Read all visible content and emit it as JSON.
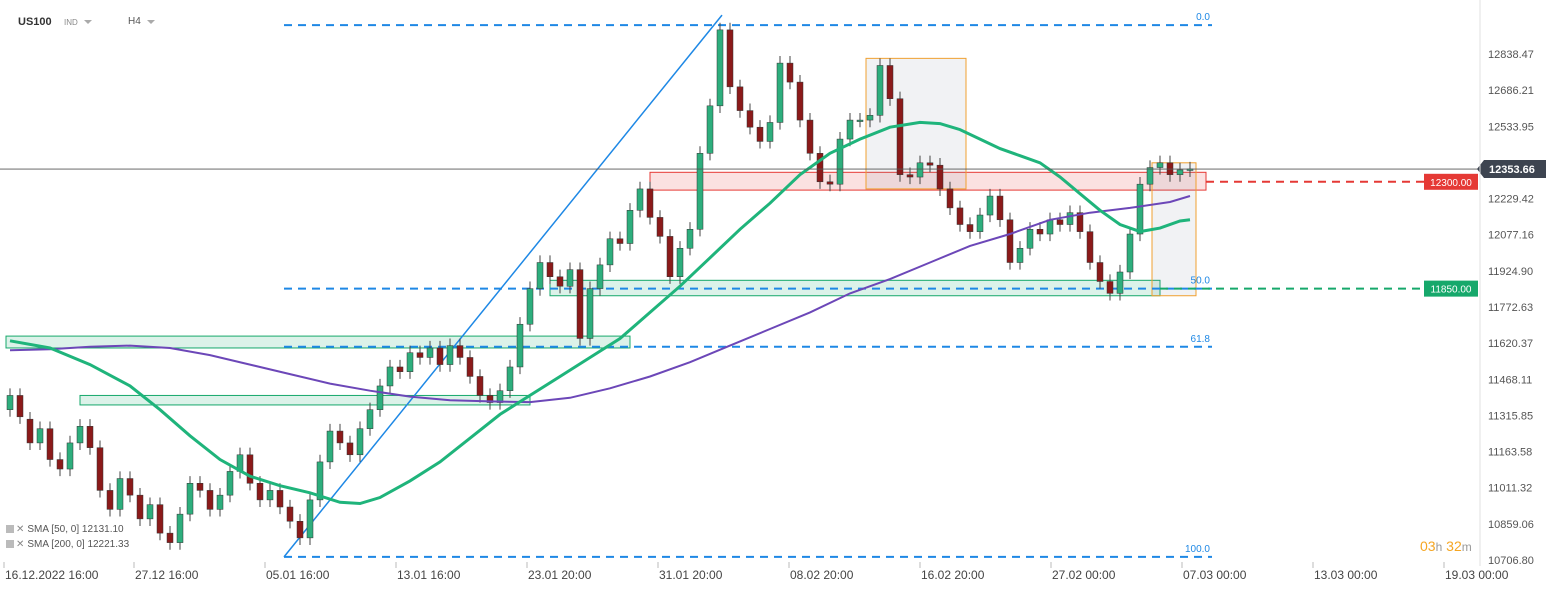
{
  "header": {
    "symbol": "US100",
    "market": "IND",
    "timeframe": "H4"
  },
  "indicators": [
    {
      "label": "SMA",
      "params": "[50, 0]",
      "value": "12131.10"
    },
    {
      "label": "SMA",
      "params": "[200, 0]",
      "value": "12221.33"
    }
  ],
  "timer": {
    "hours": "03",
    "h_unit": "h",
    "minutes": "32",
    "m_unit": "m"
  },
  "colors": {
    "bull": "#2eae7d",
    "bear": "#8b1a1a",
    "sma50": "#1fb47b",
    "sma200": "#6c47b8",
    "fib": "#1e88e5",
    "resistance": "#e53935",
    "support": "#16a86b",
    "box": "#f0a030"
  },
  "chart_data": {
    "type": "candlestick",
    "symbol": "US100",
    "timeframe": "H4",
    "yaxis": {
      "ticks": [
        "12838.47",
        "12686.21",
        "12533.95",
        "12229.42",
        "12077.16",
        "11924.90",
        "11772.63",
        "11620.37",
        "11468.11",
        "11315.85",
        "11163.58",
        "11011.32",
        "10859.06",
        "10706.80"
      ],
      "range": [
        10706.8,
        12990.0
      ]
    },
    "xaxis": {
      "ticks": [
        "16.12.2022  16:00",
        "27.12  16:00",
        "05.01  16:00",
        "13.01  16:00",
        "23.01  20:00",
        "31.01  20:00",
        "08.02  20:00",
        "16.02  20:00",
        "27.02  00:00",
        "07.03  00:00",
        "13.03  00:00",
        "19.03  00:00"
      ]
    },
    "current_price": "12353.66",
    "levels": [
      {
        "name": "resistance",
        "value": 12300.0,
        "label": "12300.00",
        "zone": [
          12265,
          12340
        ]
      },
      {
        "name": "support",
        "value": 11850.0,
        "label": "11850.00",
        "zone": [
          11820,
          11885
        ]
      }
    ],
    "fibonacci": [
      {
        "label": "0.0",
        "value": 12960
      },
      {
        "label": "50.0",
        "value": 11850
      },
      {
        "label": "61.8",
        "value": 11605
      },
      {
        "label": "100.0",
        "value": 10720
      }
    ],
    "fib_trend": {
      "from_date": "05.01",
      "to_date": "31.01",
      "from_value": 10720,
      "to_value": 12960
    },
    "sma50": [
      [
        0,
        11630
      ],
      [
        4,
        11600
      ],
      [
        8,
        11530
      ],
      [
        12,
        11440
      ],
      [
        15,
        11340
      ],
      [
        18,
        11230
      ],
      [
        21,
        11130
      ],
      [
        24,
        11060
      ],
      [
        27,
        11020
      ],
      [
        30,
        10990
      ],
      [
        33,
        10950
      ],
      [
        35,
        10945
      ],
      [
        37,
        10970
      ],
      [
        40,
        11040
      ],
      [
        43,
        11120
      ],
      [
        46,
        11220
      ],
      [
        49,
        11320
      ],
      [
        52,
        11400
      ],
      [
        55,
        11480
      ],
      [
        58,
        11560
      ],
      [
        61,
        11640
      ],
      [
        64,
        11750
      ],
      [
        67,
        11860
      ],
      [
        70,
        11980
      ],
      [
        73,
        12100
      ],
      [
        76,
        12210
      ],
      [
        79,
        12330
      ],
      [
        82,
        12420
      ],
      [
        85,
        12480
      ],
      [
        88,
        12530
      ],
      [
        91,
        12550
      ],
      [
        93,
        12545
      ],
      [
        95,
        12520
      ],
      [
        97,
        12480
      ],
      [
        99,
        12440
      ],
      [
        101,
        12410
      ],
      [
        103,
        12380
      ],
      [
        105,
        12320
      ],
      [
        107,
        12250
      ],
      [
        109,
        12180
      ],
      [
        111,
        12120
      ],
      [
        113,
        12090
      ],
      [
        115,
        12105
      ],
      [
        117,
        12135
      ],
      [
        118,
        12140
      ]
    ],
    "sma200": [
      [
        0,
        11590
      ],
      [
        4,
        11595
      ],
      [
        8,
        11605
      ],
      [
        12,
        11610
      ],
      [
        16,
        11600
      ],
      [
        20,
        11570
      ],
      [
        24,
        11530
      ],
      [
        28,
        11490
      ],
      [
        32,
        11450
      ],
      [
        36,
        11420
      ],
      [
        40,
        11395
      ],
      [
        44,
        11380
      ],
      [
        48,
        11375
      ],
      [
        52,
        11372
      ],
      [
        56,
        11390
      ],
      [
        60,
        11430
      ],
      [
        64,
        11480
      ],
      [
        68,
        11540
      ],
      [
        72,
        11610
      ],
      [
        76,
        11680
      ],
      [
        80,
        11750
      ],
      [
        84,
        11830
      ],
      [
        88,
        11890
      ],
      [
        92,
        11960
      ],
      [
        96,
        12030
      ],
      [
        100,
        12080
      ],
      [
        104,
        12140
      ],
      [
        108,
        12170
      ],
      [
        112,
        12190
      ],
      [
        116,
        12215
      ],
      [
        118,
        12240
      ]
    ],
    "candles": [
      [
        0,
        11340,
        11400
      ],
      [
        1,
        11400,
        11310
      ],
      [
        2,
        11300,
        11200
      ],
      [
        3,
        11200,
        11260
      ],
      [
        4,
        11260,
        11130
      ],
      [
        5,
        11130,
        11090
      ],
      [
        6,
        11090,
        11200
      ],
      [
        7,
        11200,
        11270
      ],
      [
        8,
        11270,
        11180
      ],
      [
        9,
        11180,
        11000
      ],
      [
        10,
        11000,
        10920
      ],
      [
        11,
        10920,
        11050
      ],
      [
        12,
        11050,
        10980
      ],
      [
        13,
        10980,
        10880
      ],
      [
        14,
        10880,
        10940
      ],
      [
        15,
        10940,
        10820
      ],
      [
        16,
        10820,
        10780
      ],
      [
        17,
        10780,
        10900
      ],
      [
        18,
        10900,
        11030
      ],
      [
        19,
        11030,
        11000
      ],
      [
        20,
        11000,
        10920
      ],
      [
        21,
        10920,
        10980
      ],
      [
        22,
        10980,
        11080
      ],
      [
        23,
        11080,
        11150
      ],
      [
        24,
        11150,
        11030
      ],
      [
        25,
        11030,
        10960
      ],
      [
        26,
        10960,
        11000
      ],
      [
        27,
        11000,
        10930
      ],
      [
        28,
        10930,
        10870
      ],
      [
        29,
        10870,
        10800
      ],
      [
        30,
        10800,
        10960
      ],
      [
        31,
        10960,
        11120
      ],
      [
        32,
        11120,
        11250
      ],
      [
        33,
        11250,
        11200
      ],
      [
        34,
        11200,
        11150
      ],
      [
        35,
        11150,
        11260
      ],
      [
        36,
        11260,
        11340
      ],
      [
        37,
        11340,
        11440
      ],
      [
        38,
        11440,
        11520
      ],
      [
        39,
        11520,
        11500
      ],
      [
        40,
        11500,
        11580
      ],
      [
        41,
        11580,
        11560
      ],
      [
        42,
        11560,
        11600
      ],
      [
        43,
        11600,
        11530
      ],
      [
        44,
        11530,
        11610
      ],
      [
        45,
        11610,
        11560
      ],
      [
        46,
        11560,
        11480
      ],
      [
        47,
        11480,
        11400
      ],
      [
        48,
        11400,
        11370
      ],
      [
        49,
        11370,
        11420
      ],
      [
        50,
        11420,
        11520
      ],
      [
        51,
        11520,
        11700
      ],
      [
        52,
        11700,
        11850
      ],
      [
        53,
        11850,
        11960
      ],
      [
        54,
        11960,
        11900
      ],
      [
        55,
        11900,
        11860
      ],
      [
        56,
        11860,
        11930
      ],
      [
        57,
        11930,
        11640
      ],
      [
        58,
        11640,
        11850
      ],
      [
        59,
        11850,
        11950
      ],
      [
        60,
        11950,
        12060
      ],
      [
        61,
        12060,
        12040
      ],
      [
        62,
        12040,
        12180
      ],
      [
        63,
        12180,
        12270
      ],
      [
        64,
        12270,
        12150
      ],
      [
        65,
        12150,
        12070
      ],
      [
        66,
        12070,
        11900
      ],
      [
        67,
        11900,
        12020
      ],
      [
        68,
        12020,
        12100
      ],
      [
        69,
        12100,
        12420
      ],
      [
        70,
        12420,
        12620
      ],
      [
        71,
        12620,
        12940
      ],
      [
        72,
        12940,
        12700
      ],
      [
        73,
        12700,
        12600
      ],
      [
        74,
        12600,
        12530
      ],
      [
        75,
        12530,
        12470
      ],
      [
        76,
        12470,
        12550
      ],
      [
        77,
        12550,
        12800
      ],
      [
        78,
        12800,
        12720
      ],
      [
        79,
        12720,
        12560
      ],
      [
        80,
        12560,
        12420
      ],
      [
        81,
        12420,
        12300
      ],
      [
        82,
        12300,
        12290
      ],
      [
        83,
        12290,
        12480
      ],
      [
        84,
        12480,
        12560
      ],
      [
        85,
        12560,
        12560
      ],
      [
        86,
        12560,
        12580
      ],
      [
        87,
        12580,
        12790
      ],
      [
        88,
        12790,
        12650
      ],
      [
        89,
        12650,
        12330
      ],
      [
        90,
        12330,
        12320
      ],
      [
        91,
        12320,
        12380
      ],
      [
        92,
        12380,
        12370
      ],
      [
        93,
        12370,
        12270
      ],
      [
        94,
        12270,
        12190
      ],
      [
        95,
        12190,
        12120
      ],
      [
        96,
        12120,
        12090
      ],
      [
        97,
        12090,
        12160
      ],
      [
        98,
        12160,
        12240
      ],
      [
        99,
        12240,
        12140
      ],
      [
        100,
        12140,
        11960
      ],
      [
        101,
        11960,
        12020
      ],
      [
        102,
        12020,
        12100
      ],
      [
        103,
        12100,
        12080
      ],
      [
        104,
        12080,
        12140
      ],
      [
        105,
        12140,
        12120
      ],
      [
        106,
        12120,
        12170
      ],
      [
        107,
        12170,
        12090
      ],
      [
        108,
        12090,
        11960
      ],
      [
        109,
        11960,
        11880
      ],
      [
        110,
        11880,
        11830
      ],
      [
        111,
        11830,
        11920
      ],
      [
        112,
        11920,
        12080
      ],
      [
        113,
        12080,
        12290
      ],
      [
        114,
        12290,
        12360
      ],
      [
        115,
        12360,
        12380
      ],
      [
        116,
        12380,
        12330
      ],
      [
        117,
        12330,
        12350
      ],
      [
        118,
        12350,
        12354
      ]
    ]
  }
}
